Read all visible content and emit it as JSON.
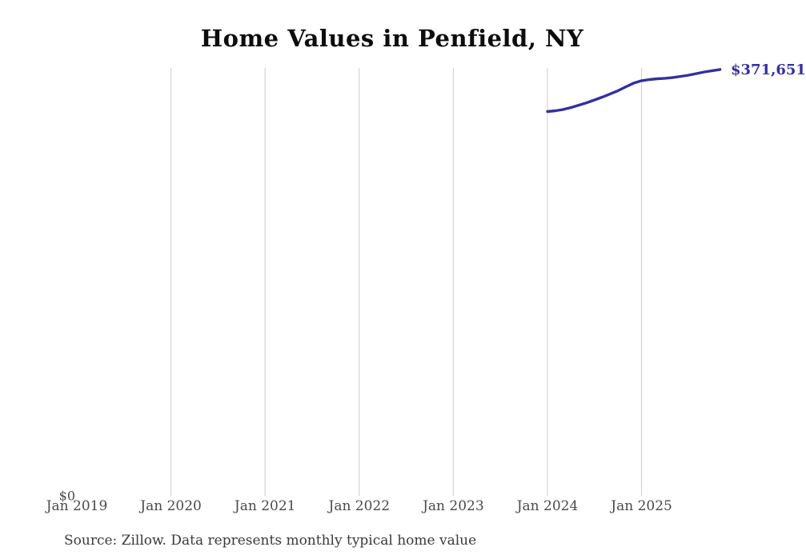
{
  "chart": {
    "title": "Home Values in Penfield, NY",
    "y_zero_label": "$0",
    "end_label_display": "$371,651",
    "source_note": "Source: Zillow. Data represents monthly typical home value"
  },
  "chart_data": {
    "type": "line",
    "title": "Home Values in Penfield, NY",
    "xlabel": "",
    "ylabel": "",
    "x_tick_labels": [
      "Jan 2019",
      "Jan 2020",
      "Jan 2021",
      "Jan 2022",
      "Jan 2023",
      "Jan 2024",
      "Jan 2025"
    ],
    "gridlines": "vertical-only",
    "gridline_tick_indices": [
      1,
      2,
      3,
      4,
      5,
      6
    ],
    "ylim": [
      0,
      373000
    ],
    "y_zero_label": "$0",
    "end_label": "$371,651",
    "legend": "none",
    "colors": {
      "line": "#34309b",
      "end_label": "#34309b",
      "gridline": "#cccccc",
      "tick_label": "#4a4a4a",
      "title": "#0d0d0d"
    },
    "series": [
      {
        "name": "Monthly typical home value",
        "unit": "USD",
        "x": [
          "2024-01",
          "2024-02",
          "2024-03",
          "2024-04",
          "2024-05",
          "2024-06",
          "2024-07",
          "2024-08",
          "2024-09",
          "2024-10",
          "2024-11",
          "2024-12",
          "2025-01",
          "2025-02",
          "2025-03",
          "2025-04",
          "2025-05",
          "2025-06",
          "2025-07",
          "2025-08",
          "2025-09",
          "2025-10",
          "2025-11"
        ],
        "values": [
          335000,
          335700,
          336800,
          338500,
          340600,
          342700,
          345100,
          347600,
          350400,
          353200,
          356600,
          359800,
          361900,
          362900,
          363600,
          364000,
          364700,
          365700,
          366700,
          368100,
          369500,
          370600,
          371651
        ]
      }
    ]
  }
}
